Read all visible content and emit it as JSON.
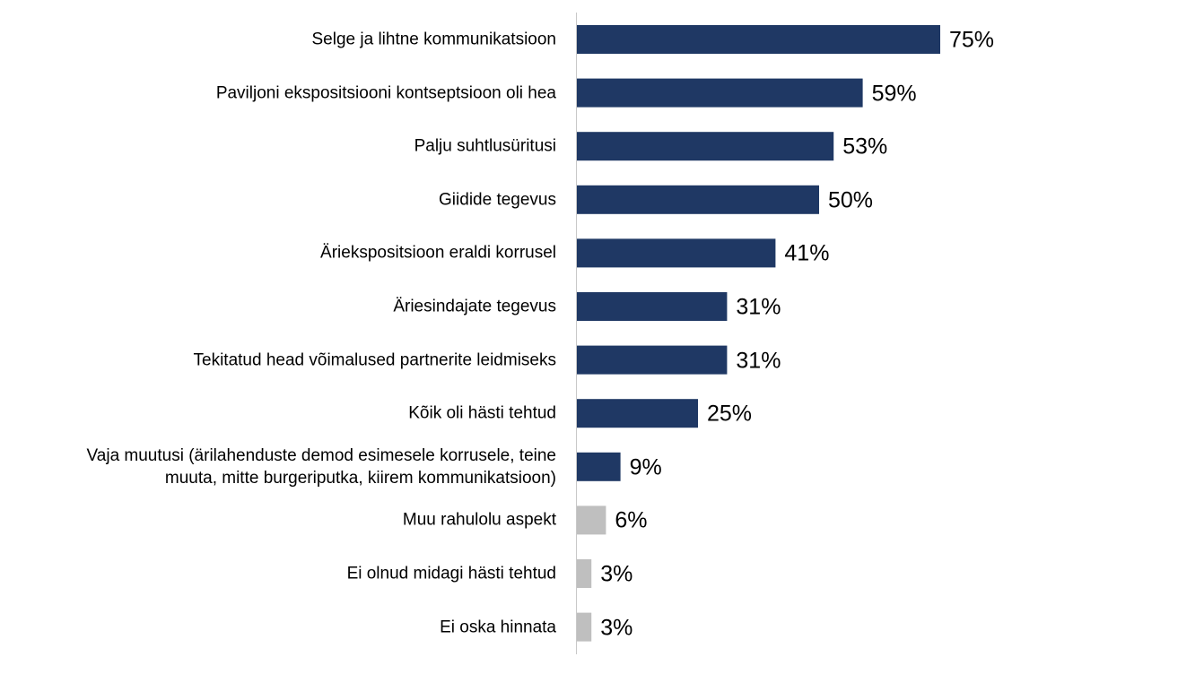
{
  "chart_data": {
    "type": "bar",
    "orientation": "horizontal",
    "categories": [
      "Selge ja lihtne kommunikatsioon",
      "Paviljoni ekspositsiooni kontseptsioon oli hea",
      "Palju suhtlusüritusi",
      "Giidide tegevus",
      "Äriekspositsioon eraldi korrusel",
      "Äriesindajate tegevus",
      "Tekitatud head võimalused partnerite leidmiseks",
      "Kõik oli hästi tehtud",
      "Vaja muutusi (ärilahenduste demod esimesele korrusele, teine\nmuuta, mitte burgeriputka, kiirem kommunikatsioon)",
      "Muu rahulolu aspekt",
      "Ei olnud midagi hästi tehtud",
      "Ei oska hinnata"
    ],
    "values": [
      75,
      59,
      53,
      50,
      41,
      31,
      31,
      25,
      9,
      6,
      3,
      3
    ],
    "value_labels": [
      "75%",
      "59%",
      "53%",
      "50%",
      "41%",
      "31%",
      "31%",
      "25%",
      "9%",
      "6%",
      "3%",
      "3%"
    ],
    "colors": [
      "#1f3864",
      "#1f3864",
      "#1f3864",
      "#1f3864",
      "#1f3864",
      "#1f3864",
      "#1f3864",
      "#1f3864",
      "#1f3864",
      "#bfbfbf",
      "#bfbfbf",
      "#bfbfbf"
    ]
  }
}
